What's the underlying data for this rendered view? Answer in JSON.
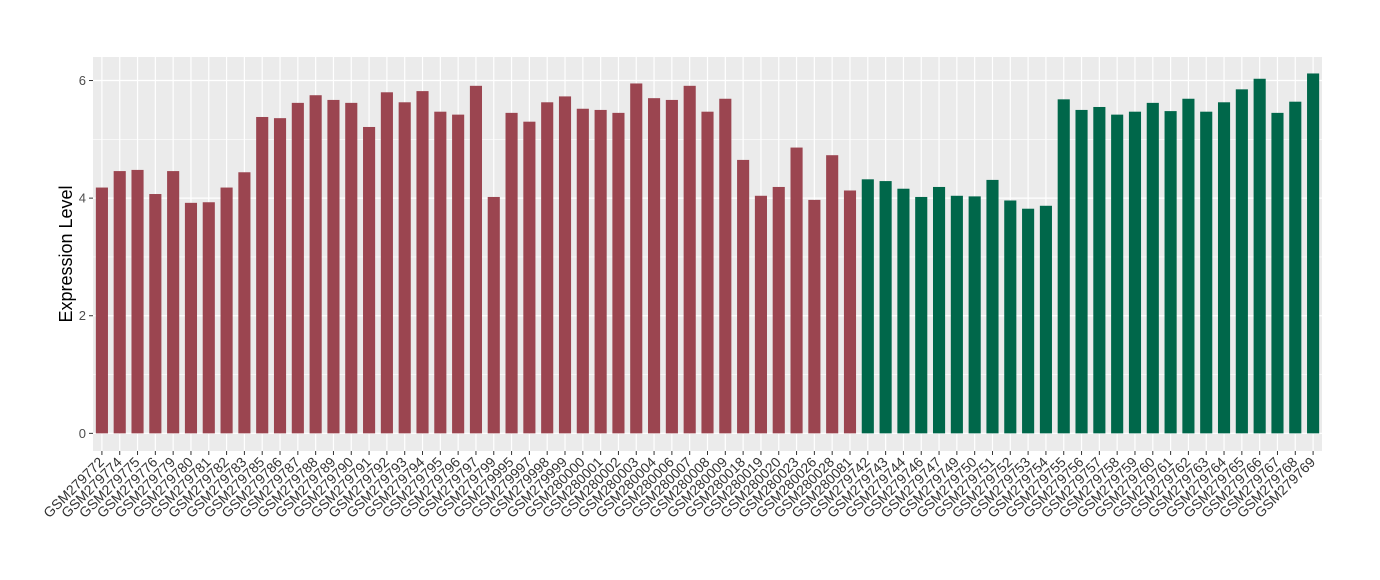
{
  "chart_data": {
    "type": "bar",
    "title": "",
    "xlabel": "",
    "ylabel": "Expression Level",
    "ylim": [
      -0.3,
      6.4
    ],
    "yticks": [
      0,
      2,
      4,
      6
    ],
    "grid": true,
    "legend": "none",
    "colors": {
      "group_a": "#9b4550",
      "group_b": "#00674a",
      "panel_bg": "#ebebeb",
      "grid": "#ffffff"
    },
    "categories": [
      "GSM279772",
      "GSM279774",
      "GSM279775",
      "GSM279776",
      "GSM279779",
      "GSM279780",
      "GSM279781",
      "GSM279782",
      "GSM279783",
      "GSM279785",
      "GSM279786",
      "GSM279787",
      "GSM279788",
      "GSM279789",
      "GSM279790",
      "GSM279791",
      "GSM279792",
      "GSM279793",
      "GSM279794",
      "GSM279795",
      "GSM279796",
      "GSM279797",
      "GSM279799",
      "GSM279995",
      "GSM279997",
      "GSM279998",
      "GSM279999",
      "GSM280000",
      "GSM280001",
      "GSM280002",
      "GSM280003",
      "GSM280004",
      "GSM280006",
      "GSM280007",
      "GSM280008",
      "GSM280009",
      "GSM280018",
      "GSM280019",
      "GSM280020",
      "GSM280023",
      "GSM280026",
      "GSM280028",
      "GSM280081",
      "GSM279742",
      "GSM279743",
      "GSM279744",
      "GSM279746",
      "GSM279747",
      "GSM279749",
      "GSM279750",
      "GSM279751",
      "GSM279752",
      "GSM279753",
      "GSM279754",
      "GSM279755",
      "GSM279756",
      "GSM279757",
      "GSM279758",
      "GSM279759",
      "GSM279760",
      "GSM279761",
      "GSM279762",
      "GSM279763",
      "GSM279764",
      "GSM279765",
      "GSM279766",
      "GSM279767",
      "GSM279768",
      "GSM279769"
    ],
    "values": [
      4.18,
      4.46,
      4.48,
      4.07,
      4.46,
      3.92,
      3.93,
      4.18,
      4.44,
      5.38,
      5.36,
      5.62,
      5.75,
      5.67,
      5.62,
      5.21,
      5.8,
      5.63,
      5.82,
      5.47,
      5.42,
      5.91,
      4.02,
      5.45,
      5.3,
      5.63,
      5.73,
      5.52,
      5.5,
      5.45,
      5.95,
      5.7,
      5.67,
      5.91,
      5.47,
      5.69,
      4.65,
      4.04,
      4.19,
      4.86,
      3.97,
      4.73,
      4.13,
      4.32,
      4.29,
      4.16,
      4.02,
      4.19,
      4.04,
      4.03,
      4.31,
      3.96,
      3.82,
      3.87,
      5.68,
      5.5,
      5.55,
      5.42,
      5.47,
      5.62,
      5.48,
      5.69,
      5.47,
      5.63,
      5.85,
      6.03,
      5.45,
      5.64,
      6.12
    ],
    "groups": [
      "a",
      "a",
      "a",
      "a",
      "a",
      "a",
      "a",
      "a",
      "a",
      "a",
      "a",
      "a",
      "a",
      "a",
      "a",
      "a",
      "a",
      "a",
      "a",
      "a",
      "a",
      "a",
      "a",
      "a",
      "a",
      "a",
      "a",
      "a",
      "a",
      "a",
      "a",
      "a",
      "a",
      "a",
      "a",
      "a",
      "a",
      "a",
      "a",
      "a",
      "a",
      "a",
      "a",
      "b",
      "b",
      "b",
      "b",
      "b",
      "b",
      "b",
      "b",
      "b",
      "b",
      "b",
      "b",
      "b",
      "b",
      "b",
      "b",
      "b",
      "b",
      "b",
      "b",
      "b",
      "b",
      "b",
      "b",
      "b",
      "b"
    ]
  }
}
